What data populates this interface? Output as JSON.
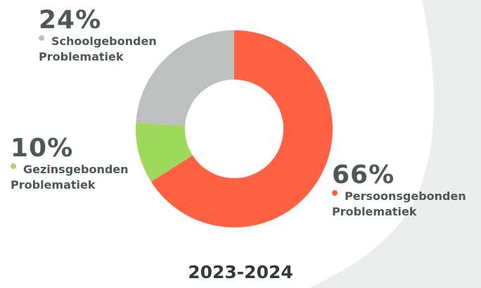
{
  "chart_data": {
    "type": "donut",
    "title": "2023-2024",
    "categories": [
      "Persoonsgebonden Problematiek",
      "Gezinsgebonden Problematiek",
      "Schoolgebonden Problematiek"
    ],
    "values": [
      66,
      10,
      24
    ],
    "value_labels": [
      "66%",
      "10%",
      "24%"
    ],
    "colors": [
      "#ff6142",
      "#9ed95b",
      "#bcc0bf"
    ]
  }
}
